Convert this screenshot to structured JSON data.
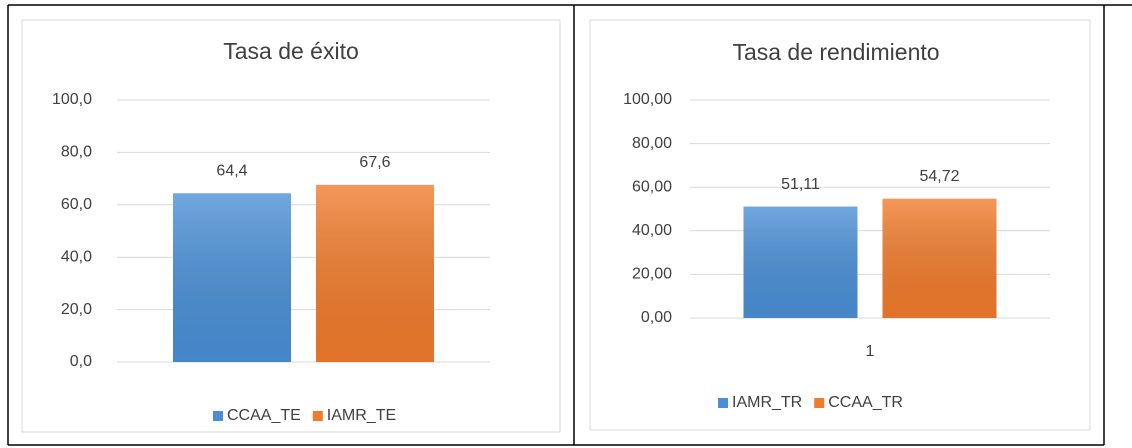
{
  "charts": [
    {
      "chart_data": {
        "type": "bar",
        "title": "Tasa de éxito",
        "categories": [
          null
        ],
        "series": [
          {
            "name": "CCAA_TE",
            "color": "#4a8fd6",
            "values": [
              64.4
            ],
            "value_labels": [
              "64,4"
            ]
          },
          {
            "name": "IAMR_TE",
            "color": "#f07b2c",
            "values": [
              67.6
            ],
            "value_labels": [
              "67,6"
            ]
          }
        ],
        "ylim": [
          0,
          100
        ],
        "yticks": [
          {
            "value": 0,
            "label": "0,0"
          },
          {
            "value": 20,
            "label": "20,0"
          },
          {
            "value": 40,
            "label": "40,0"
          },
          {
            "value": 60,
            "label": "60,0"
          },
          {
            "value": 80,
            "label": "80,0"
          },
          {
            "value": 100,
            "label": "100,0"
          }
        ],
        "grid": true,
        "legend": "bottom"
      }
    },
    {
      "chart_data": {
        "type": "bar",
        "title": "Tasa de rendimiento",
        "categories": [
          "1"
        ],
        "series": [
          {
            "name": "IAMR_TR",
            "color": "#4a8fd6",
            "values": [
              51.11
            ],
            "value_labels": [
              "51,11"
            ]
          },
          {
            "name": "CCAA_TR",
            "color": "#f07b2c",
            "values": [
              54.72
            ],
            "value_labels": [
              "54,72"
            ]
          }
        ],
        "ylim": [
          0,
          100
        ],
        "yticks": [
          {
            "value": 0,
            "label": "0,00"
          },
          {
            "value": 20,
            "label": "20,00"
          },
          {
            "value": 40,
            "label": "40,00"
          },
          {
            "value": 60,
            "label": "60,00"
          },
          {
            "value": 80,
            "label": "80,00"
          },
          {
            "value": 100,
            "label": "100,00"
          }
        ],
        "grid": true,
        "legend": "bottom"
      }
    }
  ]
}
